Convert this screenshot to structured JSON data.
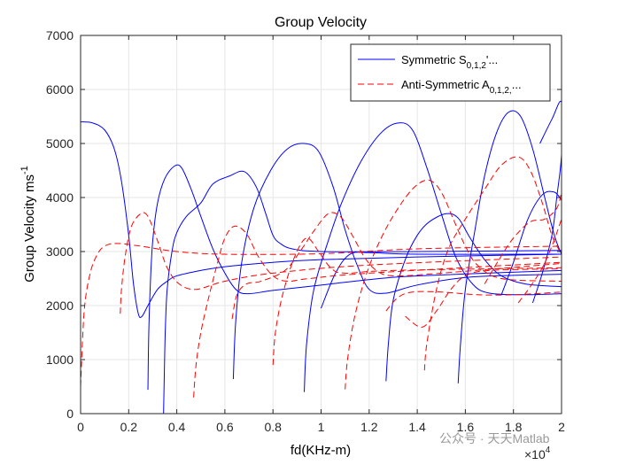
{
  "chart_data": {
    "type": "line",
    "title": "Group Velocity",
    "xlabel": "fd(KHz-m)",
    "ylabel": "Group Velocity ms",
    "ylabel_sup": "-1",
    "x_exponent_label": "×10",
    "x_exponent_power": "4",
    "xlim": [
      0,
      20000
    ],
    "ylim": [
      0,
      7000
    ],
    "xticks": [
      0,
      2000,
      4000,
      6000,
      8000,
      10000,
      12000,
      14000,
      16000,
      18000,
      20000
    ],
    "xtick_labels": [
      "0",
      "0.2",
      "0.4",
      "0.6",
      "0.8",
      "1",
      "1.2",
      "1.4",
      "1.6",
      "1.8",
      "2"
    ],
    "yticks": [
      0,
      1000,
      2000,
      3000,
      4000,
      5000,
      6000,
      7000
    ],
    "ytick_labels": [
      "0",
      "1000",
      "2000",
      "3000",
      "4000",
      "5000",
      "6000",
      "7000"
    ],
    "grid": true,
    "legend_position": "top-right",
    "legend": [
      {
        "label": "Symmetric S",
        "sub": "0,1,2",
        "tail": "'...",
        "color": "#0000ff",
        "dash": "solid"
      },
      {
        "label": "Anti-Symmetric A",
        "sub": "0,1,2,",
        "tail": "...",
        "color": "#ff0000",
        "dash": "dashed"
      }
    ],
    "series": [
      {
        "family": "symmetric",
        "color": "#0000ff",
        "dash": "solid",
        "points": [
          [
            0,
            5400
          ],
          [
            500,
            5380
          ],
          [
            1000,
            5250
          ],
          [
            1400,
            4900
          ],
          [
            1700,
            4300
          ],
          [
            2000,
            3300
          ],
          [
            2200,
            2400
          ],
          [
            2400,
            1850
          ],
          [
            2550,
            1800
          ],
          [
            2800,
            2000
          ],
          [
            3200,
            2300
          ],
          [
            3600,
            2450
          ],
          [
            4000,
            2550
          ],
          [
            5000,
            2650
          ],
          [
            6000,
            2720
          ],
          [
            8000,
            2800
          ],
          [
            10000,
            2850
          ],
          [
            14000,
            2900
          ],
          [
            20000,
            2950
          ]
        ]
      },
      {
        "family": "symmetric",
        "color": "#0000ff",
        "dash": "solid",
        "points": [
          [
            3450,
            0
          ],
          [
            3480,
            700
          ],
          [
            3520,
            1500
          ],
          [
            3600,
            2300
          ],
          [
            3800,
            3000
          ],
          [
            4000,
            3350
          ],
          [
            4400,
            3650
          ],
          [
            5000,
            3900
          ],
          [
            5500,
            4250
          ],
          [
            6200,
            4400
          ],
          [
            6800,
            4480
          ],
          [
            7300,
            4200
          ],
          [
            7700,
            3700
          ],
          [
            8000,
            3300
          ],
          [
            8300,
            3150
          ],
          [
            8800,
            3050
          ],
          [
            10000,
            3000
          ],
          [
            14000,
            3000
          ],
          [
            20000,
            3020
          ]
        ]
      },
      {
        "family": "symmetric",
        "color": "#0000ff",
        "dash": "solid",
        "points": [
          [
            2800,
            440
          ],
          [
            2830,
            1400
          ],
          [
            2900,
            2400
          ],
          [
            3000,
            3200
          ],
          [
            3200,
            3900
          ],
          [
            3500,
            4350
          ],
          [
            3900,
            4580
          ],
          [
            4200,
            4550
          ],
          [
            4600,
            4150
          ],
          [
            5000,
            3650
          ],
          [
            5500,
            3050
          ],
          [
            6000,
            2600
          ],
          [
            6500,
            2280
          ],
          [
            7000,
            2220
          ],
          [
            8000,
            2280
          ],
          [
            10000,
            2380
          ],
          [
            12000,
            2480
          ],
          [
            14000,
            2550
          ],
          [
            20000,
            2650
          ]
        ]
      },
      {
        "family": "symmetric",
        "color": "#0000ff",
        "dash": "solid",
        "points": [
          [
            6350,
            640
          ],
          [
            6450,
            1700
          ],
          [
            6700,
            2800
          ],
          [
            7200,
            3800
          ],
          [
            7900,
            4500
          ],
          [
            8600,
            4900
          ],
          [
            9300,
            5000
          ],
          [
            9900,
            4850
          ],
          [
            10500,
            4200
          ],
          [
            11000,
            3400
          ],
          [
            11500,
            2750
          ],
          [
            12000,
            2300
          ],
          [
            12700,
            2230
          ],
          [
            14000,
            2380
          ],
          [
            16000,
            2520
          ],
          [
            18000,
            2560
          ],
          [
            20000,
            2580
          ]
        ]
      },
      {
        "family": "symmetric",
        "color": "#0000ff",
        "dash": "solid",
        "points": [
          [
            9300,
            400
          ],
          [
            9400,
            1300
          ],
          [
            9700,
            2300
          ],
          [
            10300,
            3200
          ],
          [
            10900,
            3950
          ],
          [
            11700,
            4700
          ],
          [
            12500,
            5200
          ],
          [
            13200,
            5380
          ],
          [
            13800,
            5250
          ],
          [
            14400,
            4550
          ],
          [
            15000,
            3700
          ],
          [
            15600,
            2900
          ],
          [
            16300,
            2400
          ],
          [
            17000,
            2230
          ],
          [
            18500,
            2200
          ],
          [
            20000,
            2220
          ]
        ]
      },
      {
        "family": "symmetric",
        "color": "#0000ff",
        "dash": "solid",
        "points": [
          [
            12700,
            600
          ],
          [
            12800,
            1300
          ],
          [
            13000,
            2100
          ],
          [
            13500,
            2850
          ],
          [
            14000,
            3300
          ],
          [
            14500,
            3550
          ],
          [
            15200,
            3700
          ],
          [
            15700,
            3620
          ],
          [
            16200,
            3250
          ],
          [
            16800,
            2850
          ],
          [
            17500,
            2550
          ],
          [
            18500,
            2400
          ],
          [
            20000,
            2350
          ]
        ]
      },
      {
        "family": "symmetric",
        "color": "#0000ff",
        "dash": "solid",
        "points": [
          [
            15700,
            560
          ],
          [
            15800,
            1300
          ],
          [
            16000,
            2300
          ],
          [
            16400,
            3400
          ],
          [
            16800,
            4400
          ],
          [
            17300,
            5200
          ],
          [
            17800,
            5580
          ],
          [
            18300,
            5500
          ],
          [
            18800,
            4900
          ],
          [
            19300,
            4000
          ],
          [
            19700,
            3300
          ],
          [
            20000,
            2950
          ]
        ]
      },
      {
        "family": "symmetric",
        "color": "#0000ff",
        "dash": "solid",
        "points": [
          [
            17500,
            2200
          ],
          [
            18000,
            2800
          ],
          [
            18600,
            3600
          ],
          [
            19200,
            4050
          ],
          [
            19700,
            4100
          ],
          [
            20000,
            3950
          ]
        ]
      },
      {
        "family": "symmetric",
        "color": "#0000ff",
        "dash": "solid",
        "points": [
          [
            18800,
            2050
          ],
          [
            19200,
            2600
          ],
          [
            19600,
            3300
          ],
          [
            19800,
            4000
          ],
          [
            20000,
            4800
          ],
          [
            20000,
            5760
          ],
          [
            19600,
            5450
          ],
          [
            19100,
            5000
          ]
        ]
      },
      {
        "family": "symmetric",
        "color": "#0000ff",
        "dash": "solid",
        "points": [
          [
            10000,
            1950
          ],
          [
            10600,
            2600
          ],
          [
            11200,
            2950
          ],
          [
            12000,
            2980
          ],
          [
            14000,
            2950
          ],
          [
            20000,
            2950
          ]
        ]
      },
      {
        "family": "antisymmetric",
        "color": "#ff0000",
        "dash": "dashed",
        "points": [
          [
            0,
            500
          ],
          [
            150,
            1900
          ],
          [
            400,
            2600
          ],
          [
            700,
            2950
          ],
          [
            1000,
            3100
          ],
          [
            1500,
            3150
          ],
          [
            2500,
            3100
          ],
          [
            4000,
            3000
          ],
          [
            6000,
            2950
          ],
          [
            10000,
            2960
          ],
          [
            14000,
            3050
          ],
          [
            20000,
            3100
          ]
        ]
      },
      {
        "family": "antisymmetric",
        "color": "#ff0000",
        "dash": "dashed",
        "points": [
          [
            1650,
            1850
          ],
          [
            1700,
            2300
          ],
          [
            1850,
            2900
          ],
          [
            2100,
            3450
          ],
          [
            2500,
            3700
          ],
          [
            2800,
            3650
          ],
          [
            3200,
            3200
          ],
          [
            3600,
            2700
          ],
          [
            4100,
            2400
          ],
          [
            4800,
            2300
          ],
          [
            6000,
            2450
          ],
          [
            8000,
            2600
          ],
          [
            12000,
            2750
          ],
          [
            20000,
            2900
          ]
        ]
      },
      {
        "family": "antisymmetric",
        "color": "#ff0000",
        "dash": "dashed",
        "points": [
          [
            4700,
            300
          ],
          [
            4800,
            900
          ],
          [
            5000,
            1500
          ],
          [
            5300,
            2100
          ],
          [
            5700,
            2800
          ],
          [
            6000,
            3250
          ],
          [
            6400,
            3470
          ],
          [
            6900,
            3330
          ],
          [
            7400,
            2900
          ],
          [
            8000,
            2550
          ],
          [
            8600,
            2450
          ],
          [
            9500,
            2500
          ],
          [
            12000,
            2600
          ],
          [
            20000,
            2800
          ]
        ]
      },
      {
        "family": "antisymmetric",
        "color": "#ff0000",
        "dash": "dashed",
        "points": [
          [
            6300,
            1750
          ],
          [
            6500,
            2200
          ],
          [
            6900,
            2400
          ],
          [
            7500,
            2450
          ],
          [
            8500,
            2650
          ],
          [
            9200,
            3050
          ],
          [
            9700,
            3380
          ],
          [
            10300,
            3700
          ],
          [
            10800,
            3650
          ],
          [
            11300,
            3300
          ],
          [
            11800,
            2900
          ],
          [
            12300,
            2650
          ],
          [
            13000,
            2550
          ],
          [
            15000,
            2600
          ],
          [
            20000,
            2780
          ]
        ]
      },
      {
        "family": "antisymmetric",
        "color": "#ff0000",
        "dash": "dashed",
        "points": [
          [
            8000,
            900
          ],
          [
            8100,
            1500
          ],
          [
            8400,
            2200
          ],
          [
            8900,
            2900
          ],
          [
            9400,
            3250
          ],
          [
            9900,
            3000
          ],
          [
            10400,
            2700
          ],
          [
            11000,
            2600
          ],
          [
            13000,
            2650
          ],
          [
            20000,
            2700
          ]
        ]
      },
      {
        "family": "antisymmetric",
        "color": "#ff0000",
        "dash": "dashed",
        "points": [
          [
            11000,
            450
          ],
          [
            11100,
            1000
          ],
          [
            11400,
            1800
          ],
          [
            11900,
            2600
          ],
          [
            12500,
            3250
          ],
          [
            13200,
            3800
          ],
          [
            13900,
            4200
          ],
          [
            14500,
            4320
          ],
          [
            15000,
            4100
          ],
          [
            15500,
            3600
          ],
          [
            16000,
            3100
          ],
          [
            16500,
            2750
          ],
          [
            17500,
            2500
          ],
          [
            20000,
            2450
          ]
        ]
      },
      {
        "family": "antisymmetric",
        "color": "#ff0000",
        "dash": "dashed",
        "points": [
          [
            12700,
            1900
          ],
          [
            13200,
            2150
          ],
          [
            13800,
            2250
          ],
          [
            15000,
            2250
          ],
          [
            16500,
            2200
          ],
          [
            18000,
            2200
          ],
          [
            20000,
            2250
          ]
        ]
      },
      {
        "family": "antisymmetric",
        "color": "#ff0000",
        "dash": "dashed",
        "points": [
          [
            13500,
            1800
          ],
          [
            14200,
            1600
          ],
          [
            14800,
            1900
          ],
          [
            15400,
            2300
          ],
          [
            16000,
            2550
          ],
          [
            17000,
            2650
          ],
          [
            20000,
            2680
          ]
        ]
      },
      {
        "family": "antisymmetric",
        "color": "#ff0000",
        "dash": "dashed",
        "points": [
          [
            14300,
            800
          ],
          [
            14400,
            1300
          ],
          [
            14800,
            2300
          ],
          [
            15300,
            3050
          ],
          [
            16000,
            3600
          ],
          [
            16800,
            4150
          ],
          [
            17500,
            4600
          ],
          [
            18200,
            4750
          ],
          [
            18700,
            4500
          ],
          [
            19200,
            3900
          ],
          [
            19600,
            3300
          ],
          [
            20000,
            2950
          ]
        ]
      },
      {
        "family": "antisymmetric",
        "color": "#ff0000",
        "dash": "dashed",
        "points": [
          [
            16800,
            2400
          ],
          [
            17400,
            2850
          ],
          [
            18000,
            3250
          ],
          [
            18700,
            3550
          ],
          [
            19300,
            3600
          ],
          [
            19800,
            3800
          ],
          [
            20000,
            4100
          ]
        ]
      },
      {
        "family": "antisymmetric",
        "color": "#ff0000",
        "dash": "dashed",
        "points": [
          [
            18200,
            2050
          ],
          [
            18700,
            2350
          ],
          [
            19200,
            2700
          ],
          [
            19600,
            3100
          ],
          [
            20000,
            3600
          ]
        ]
      }
    ]
  },
  "watermark": "公众号 · 天天Matlab"
}
